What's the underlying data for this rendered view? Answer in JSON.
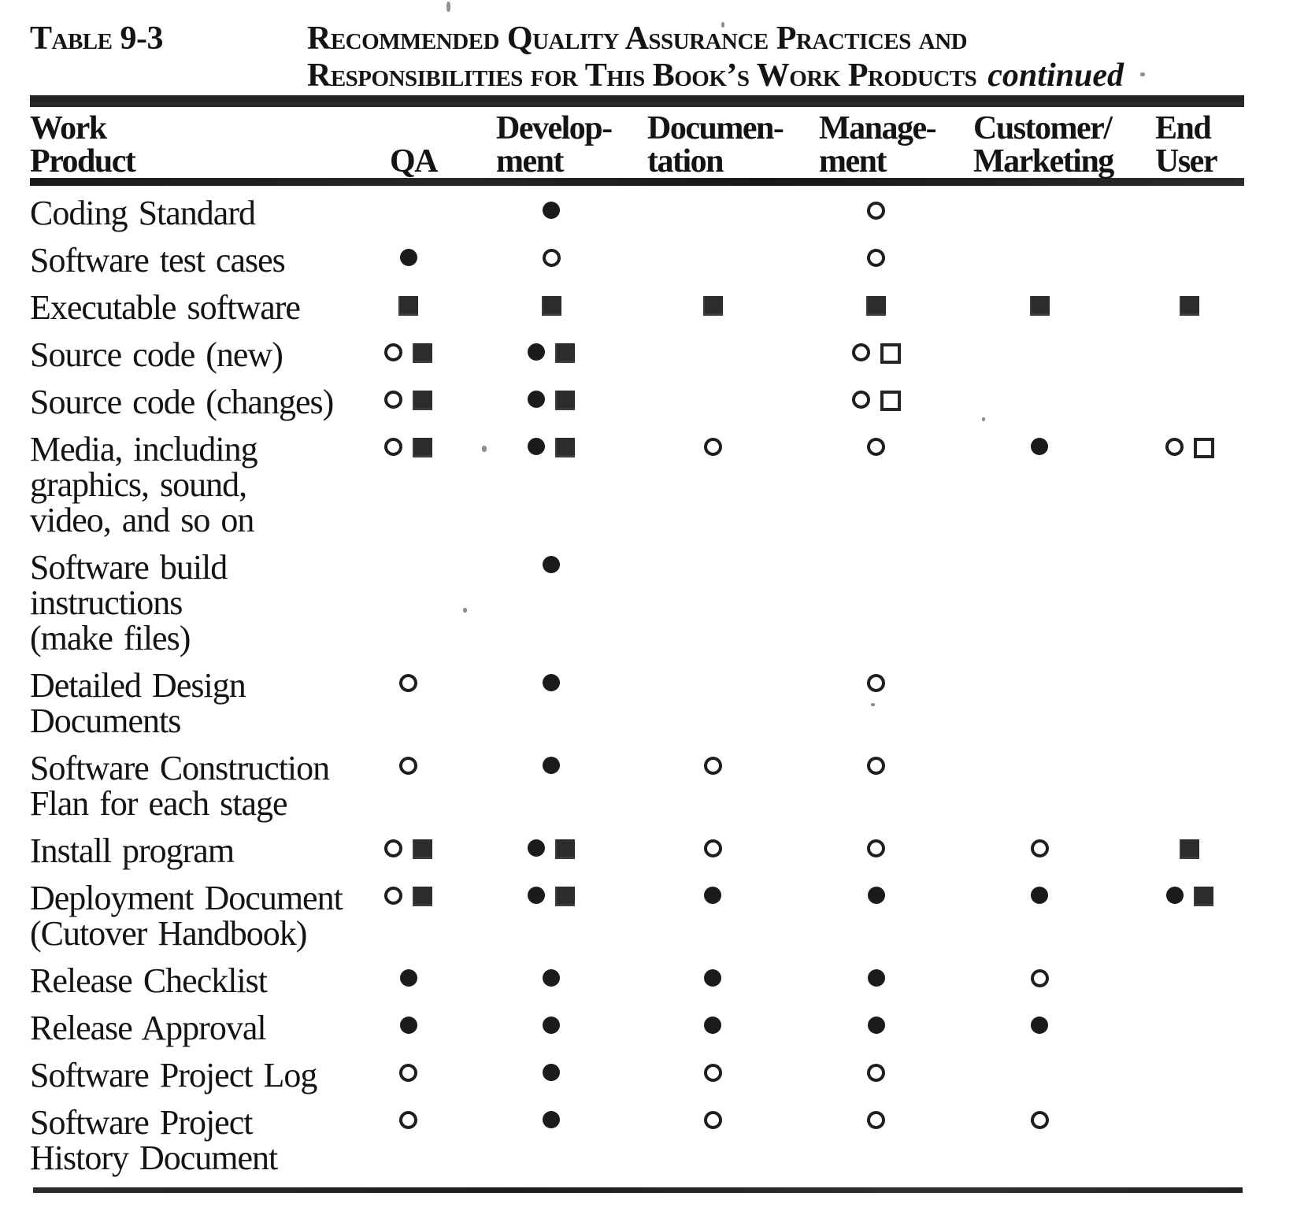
{
  "caption": {
    "label": "Table 9-3",
    "title_line1": "Recommended Quality Assurance Practices and",
    "title_line2": "Responsibilities for This Book’s Work Products",
    "continued": "continued"
  },
  "columns": [
    "Work\nProduct",
    "QA",
    "Develop-\nment",
    "Documen-\ntation",
    "Manage-\nment",
    "Customer/\nMarketing",
    "End\nUser"
  ],
  "legend": {
    "fc": "filled-circle",
    "oc": "open-circle",
    "fs": "filled-square",
    "os": "open-square"
  },
  "symbol_glyphs": {
    "fc": "●",
    "oc": "○",
    "fs": "■",
    "os": "□"
  },
  "colors": {
    "ink": "#141414",
    "paper": "#ffffff"
  },
  "rows": [
    {
      "product": "Coding Standard",
      "cells": [
        [],
        [
          "fc"
        ],
        [],
        [
          "oc"
        ],
        [],
        []
      ]
    },
    {
      "product": "Software test cases",
      "cells": [
        [
          "fc"
        ],
        [
          "oc"
        ],
        [],
        [
          "oc"
        ],
        [],
        []
      ]
    },
    {
      "product": "Executable software",
      "cells": [
        [
          "fs"
        ],
        [
          "fs"
        ],
        [
          "fs"
        ],
        [
          "fs"
        ],
        [
          "fs"
        ],
        [
          "fs"
        ]
      ]
    },
    {
      "product": "Source code (new)",
      "cells": [
        [
          "oc",
          "fs"
        ],
        [
          "fc",
          "fs"
        ],
        [],
        [
          "oc",
          "os"
        ],
        [],
        []
      ]
    },
    {
      "product": "Source code (changes)",
      "cells": [
        [
          "oc",
          "fs"
        ],
        [
          "fc",
          "fs"
        ],
        [],
        [
          "oc",
          "os"
        ],
        [],
        []
      ]
    },
    {
      "product": "Media, including\ngraphics, sound,\nvideo, and so on",
      "cells": [
        [
          "oc",
          "fs"
        ],
        [
          "fc",
          "fs"
        ],
        [
          "oc"
        ],
        [
          "oc"
        ],
        [
          "fc"
        ],
        [
          "oc",
          "os"
        ]
      ]
    },
    {
      "product": "Software build\ninstructions\n(make files)",
      "cells": [
        [],
        [
          "fc"
        ],
        [],
        [],
        [],
        []
      ]
    },
    {
      "product": "Detailed Design\nDocuments",
      "cells": [
        [
          "oc"
        ],
        [
          "fc"
        ],
        [],
        [
          "oc"
        ],
        [],
        []
      ]
    },
    {
      "product": "Software Construction\nFlan for each stage",
      "cells": [
        [
          "oc"
        ],
        [
          "fc"
        ],
        [
          "oc"
        ],
        [
          "oc"
        ],
        [],
        []
      ]
    },
    {
      "product": "Install program",
      "cells": [
        [
          "oc",
          "fs"
        ],
        [
          "fc",
          "fs"
        ],
        [
          "oc"
        ],
        [
          "oc"
        ],
        [
          "oc"
        ],
        [
          "fs"
        ]
      ]
    },
    {
      "product": "Deployment Document\n(Cutover Handbook)",
      "cells": [
        [
          "oc",
          "fs"
        ],
        [
          "fc",
          "fs"
        ],
        [
          "fc"
        ],
        [
          "fc"
        ],
        [
          "fc"
        ],
        [
          "fc",
          "fs"
        ]
      ]
    },
    {
      "product": "Release Checklist",
      "cells": [
        [
          "fc"
        ],
        [
          "fc"
        ],
        [
          "fc"
        ],
        [
          "fc"
        ],
        [
          "oc"
        ],
        []
      ]
    },
    {
      "product": "Release Approval",
      "cells": [
        [
          "fc"
        ],
        [
          "fc"
        ],
        [
          "fc"
        ],
        [
          "fc"
        ],
        [
          "fc"
        ],
        []
      ]
    },
    {
      "product": "Software Project Log",
      "cells": [
        [
          "oc"
        ],
        [
          "fc"
        ],
        [
          "oc"
        ],
        [
          "oc"
        ],
        [],
        []
      ]
    },
    {
      "product": "Software Project\nHistory Document",
      "cells": [
        [
          "oc"
        ],
        [
          "fc"
        ],
        [
          "oc"
        ],
        [
          "oc"
        ],
        [
          "oc"
        ],
        []
      ]
    }
  ]
}
